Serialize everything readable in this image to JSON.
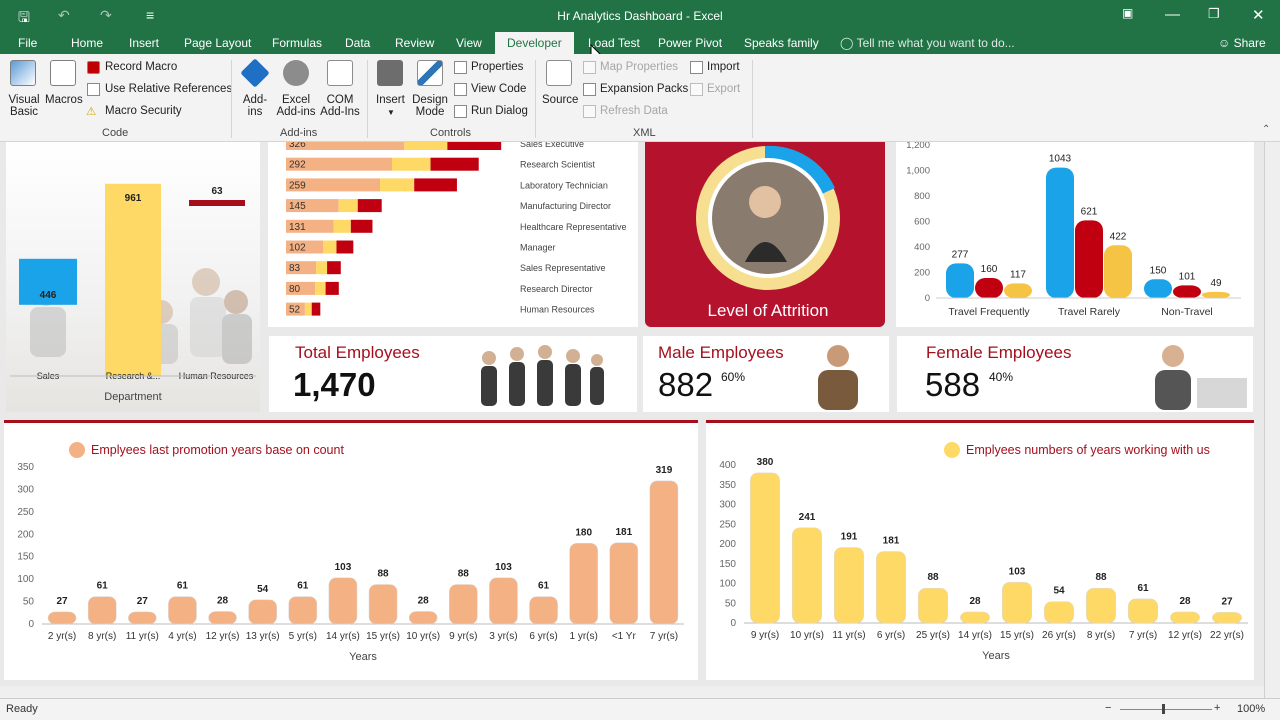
{
  "window": {
    "title": "Hr Analytics Dashboard - Excel",
    "share": "Share"
  },
  "tabs": [
    "File",
    "Home",
    "Insert",
    "Page Layout",
    "Formulas",
    "Data",
    "Review",
    "View",
    "Developer",
    "Load Test",
    "Power Pivot",
    "Speaks family"
  ],
  "tellme": "Tell me what you want to do...",
  "ribbon": {
    "code": {
      "visual_basic": "Visual Basic",
      "macros": "Macros",
      "record": "Record Macro",
      "relative": "Use Relative References",
      "security": "Macro Security",
      "label": "Code"
    },
    "addins": {
      "addins": "Add-ins",
      "excel": "Excel Add-ins",
      "com": "COM Add-Ins",
      "label": "Add-ins"
    },
    "controls": {
      "insert": "Insert",
      "design": "Design Mode",
      "properties": "Properties",
      "viewcode": "View Code",
      "rundialog": "Run Dialog",
      "label": "Controls"
    },
    "xml": {
      "source": "Source",
      "mapprop": "Map Properties",
      "expansion": "Expansion Packs",
      "refresh": "Refresh Data",
      "import": "Import",
      "export": "Export",
      "label": "XML"
    }
  },
  "dept": {
    "title": "Department",
    "categories": [
      "Sales",
      "Research &...",
      "Human Resources"
    ],
    "values": [
      446,
      961,
      63
    ]
  },
  "roles": {
    "values": [
      326,
      292,
      259,
      145,
      131,
      102,
      83,
      80,
      52
    ],
    "labels": [
      "Sales Executive",
      "Research Scientist",
      "Laboratory Technician",
      "Manufacturing Director",
      "Healthcare Representative",
      "Manager",
      "Sales Representative",
      "Research Director",
      "Human Resources"
    ]
  },
  "attrition": {
    "label": "Level of Attrition"
  },
  "travel": {
    "yticks": [
      "1,200",
      "1,000",
      "800",
      "600",
      "400",
      "200",
      "0"
    ],
    "categories": [
      "Travel Frequently",
      "Travel Rarely",
      "Non-Travel"
    ],
    "values": [
      [
        277,
        160,
        117
      ],
      [
        1043,
        621,
        422
      ],
      [
        150,
        101,
        49
      ]
    ],
    "colors": [
      "#1aa3e8",
      "#c00010",
      "#f5c445"
    ]
  },
  "kpi": {
    "total_label": "Total Employees",
    "total": "1,470",
    "male_label": "Male Employees",
    "male": "882",
    "male_pct": "60%",
    "female_label": "Female Employees",
    "female": "588",
    "female_pct": "40%"
  },
  "chart_data": [
    {
      "type": "bar",
      "title": "Emplyees last promotion years base on count",
      "xlabel": "Years",
      "ylim": [
        0,
        350
      ],
      "yticks": [
        "350",
        "300",
        "250",
        "200",
        "150",
        "100",
        "50",
        "0"
      ],
      "categories": [
        "2 yr(s)",
        "8 yr(s)",
        "11 yr(s)",
        "4 yr(s)",
        "12 yr(s)",
        "13 yr(s)",
        "5 yr(s)",
        "14 yr(s)",
        "15 yr(s)",
        "10 yr(s)",
        "9 yr(s)",
        "3 yr(s)",
        "6 yr(s)",
        "1 yr(s)",
        "<1 Yr",
        "7 yr(s)"
      ],
      "values": [
        27,
        61,
        27,
        61,
        28,
        54,
        61,
        103,
        88,
        28,
        88,
        103,
        61,
        180,
        181,
        319
      ],
      "color": "#f4b183"
    },
    {
      "type": "bar",
      "title": "Emplyees numbers of years working with us",
      "xlabel": "Years",
      "ylim": [
        0,
        400
      ],
      "yticks": [
        "400",
        "350",
        "300",
        "250",
        "200",
        "150",
        "100",
        "50",
        "0"
      ],
      "categories": [
        "9 yr(s)",
        "10 yr(s)",
        "11 yr(s)",
        "6 yr(s)",
        "25 yr(s)",
        "14 yr(s)",
        "15 yr(s)",
        "26 yr(s)",
        "8 yr(s)",
        "7 yr(s)",
        "12 yr(s)",
        "22 yr(s)"
      ],
      "values": [
        380,
        241,
        191,
        181,
        88,
        28,
        103,
        54,
        88,
        61,
        28,
        27
      ],
      "color": "#ffd966"
    }
  ],
  "status": {
    "ready": "Ready",
    "zoom": "100%"
  }
}
